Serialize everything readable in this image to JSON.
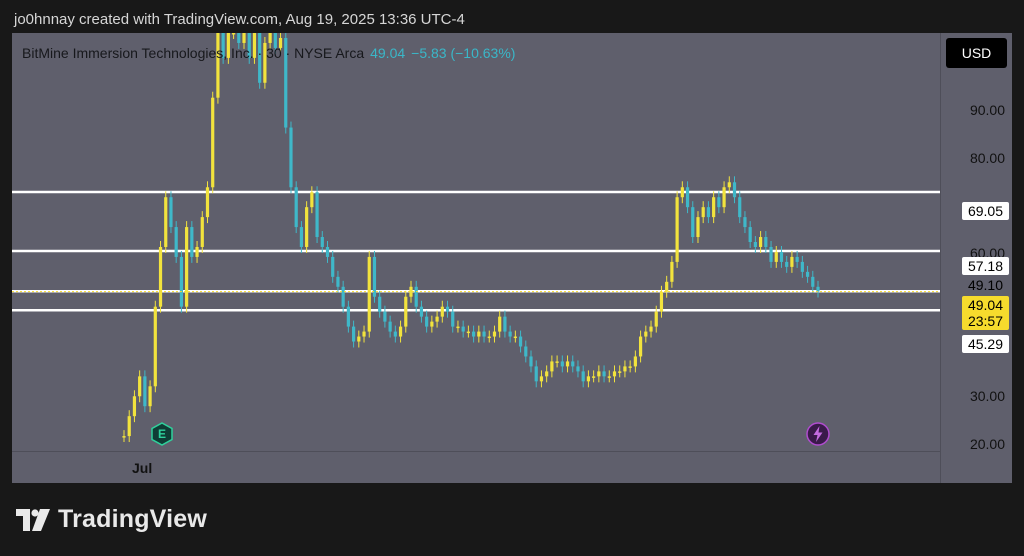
{
  "header": {
    "attribution": "jo0hnnay created with TradingView.com, Aug 19, 2025 13:36 UTC-4"
  },
  "symbol": {
    "name": "BitMine Immersion Technologies, Inc. · 30 · NYSE Arca",
    "last_price": "49.04",
    "change": "−5.83 (−10.63%)"
  },
  "currency_button": "USD",
  "price_axis": {
    "ticks": [
      "90.00",
      "80.00",
      "60.00",
      "30.00",
      "20.00"
    ],
    "level_tags": [
      "69.05",
      "57.18",
      "49.10",
      "45.29"
    ],
    "current_price": "49.04",
    "countdown": "23:57"
  },
  "time_axis": {
    "labels": [
      "Jul"
    ]
  },
  "events": {
    "earnings_badge": "E",
    "split_badge_icon": "lightning-icon"
  },
  "footer": {
    "brand": "TradingView"
  },
  "colors": {
    "background": "#5f5f6c",
    "up": "#f2e33d",
    "down": "#3fb8c9",
    "level_line": "#ffffff",
    "current_tag": "#f6db2d"
  },
  "chart_data": {
    "type": "line",
    "title": "BitMine Immersion Technologies, Inc. · 30 · NYSE Arca",
    "xlabel": "",
    "ylabel": "",
    "ylim": [
      17,
      101
    ],
    "horizontal_levels": [
      69.05,
      57.18,
      49.1,
      45.29
    ],
    "series": [
      {
        "values": [
          20,
          24,
          28,
          32,
          26,
          30,
          46,
          58,
          68,
          62,
          56,
          46,
          62,
          56,
          58,
          64,
          70,
          88,
          101,
          96,
          101,
          101,
          99,
          101,
          96,
          101,
          91,
          99,
          101,
          98,
          100,
          82,
          70,
          62,
          58,
          66,
          69,
          60,
          58,
          56,
          52,
          50,
          46,
          42,
          39,
          40,
          41,
          56,
          48,
          45,
          43,
          41,
          40,
          42,
          48,
          50,
          46,
          44,
          42,
          43,
          44,
          46,
          45,
          42,
          42,
          41,
          41,
          40,
          41,
          40,
          40,
          41,
          44,
          41,
          40,
          40,
          38,
          36,
          34,
          31,
          32,
          33,
          35,
          35,
          34,
          35,
          34,
          33,
          31,
          32,
          32,
          33,
          32,
          32,
          33,
          33,
          34,
          34,
          36,
          40,
          41,
          42,
          45,
          49,
          51,
          55,
          68,
          70,
          66,
          60,
          64,
          66,
          64,
          68,
          66,
          70,
          71,
          68,
          64,
          62,
          59,
          58,
          60,
          58,
          55,
          57,
          55,
          54,
          56,
          55,
          53,
          52,
          50,
          49.04
        ]
      }
    ]
  }
}
